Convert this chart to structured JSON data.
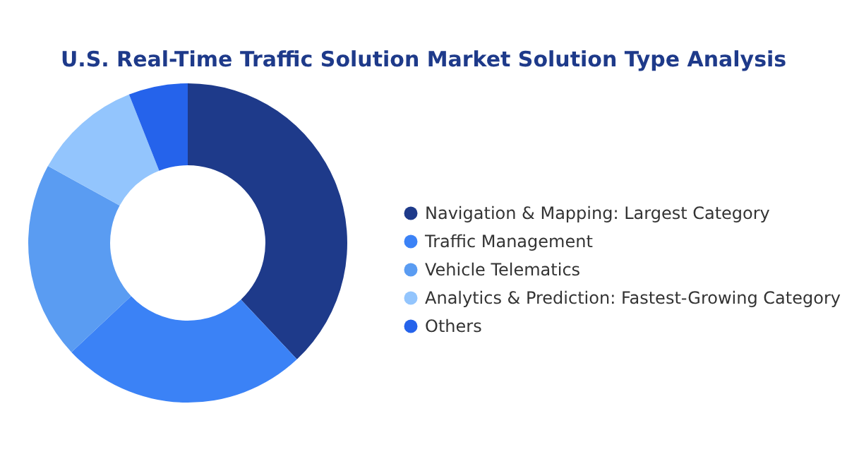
{
  "chart_data": {
    "type": "donut",
    "title": "U.S. Real-Time Traffic Solution Market Solution Type Analysis",
    "categories": [
      "Navigation & Mapping:  Largest Category",
      "Traffic Management",
      "Vehicle Telematics",
      "Analytics & Prediction:  Fastest-Growing Category",
      "Others"
    ],
    "values": [
      38,
      25,
      20,
      11,
      6
    ],
    "colors": [
      "#1e3a8a",
      "#3b82f6",
      "#5a9cf2",
      "#93c5fd",
      "#2563eb"
    ],
    "legend": "right"
  }
}
